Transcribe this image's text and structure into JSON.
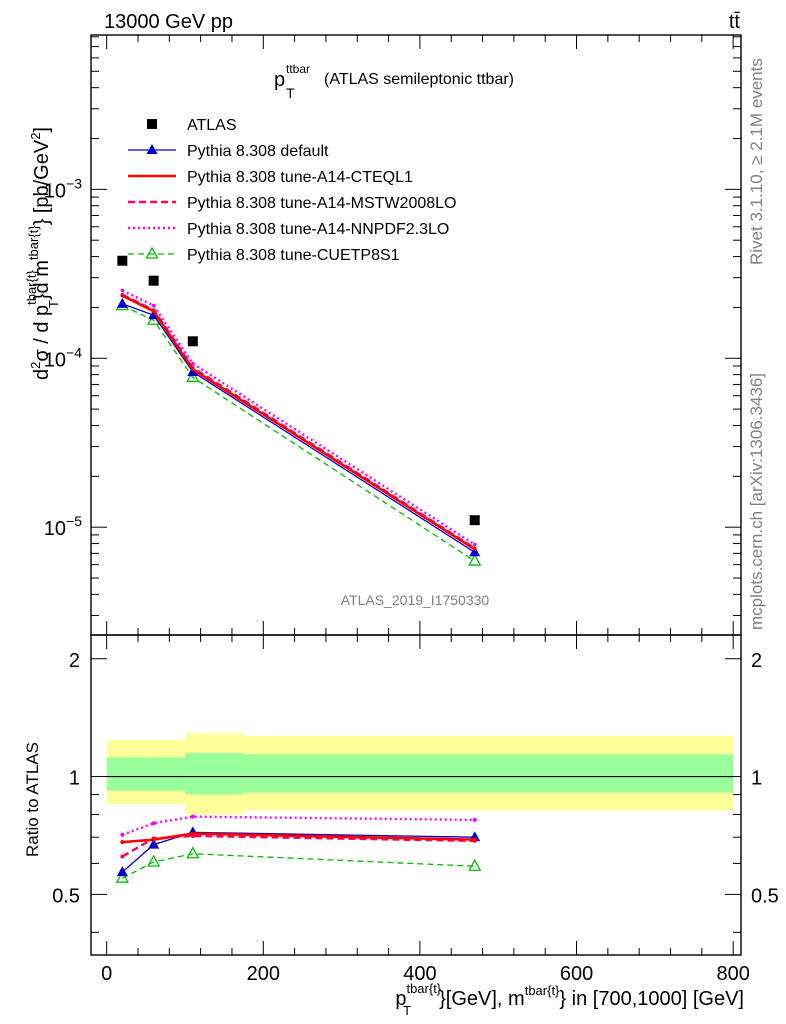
{
  "header": {
    "left": "13000 GeV pp",
    "right": "tt̄"
  },
  "side_labels": {
    "rivet": "Rivet 3.1.10, ≥ 2.1M events",
    "mcplots": "mcplots.cern.ch [arXiv:1306.3436]"
  },
  "watermark": "ATLAS_2019_I1750330",
  "colors": {
    "data": "#000000",
    "default": "#0000cc",
    "cteql1": "#ff0000",
    "mstw": "#ff0066",
    "nnpdf": "#ff00ff",
    "cuetp": "#00bb00",
    "band_outer": "#ffff99",
    "band_inner": "#99ff99"
  },
  "chart_data": {
    "type": "line",
    "title": "(ATLAS semileptonic ttbar)",
    "title_var": "p",
    "title_sub": "T",
    "title_sup": "ttbar",
    "ylabel": "d²σ / d p_T^{tbar{t}} d m^{tbar{t}} [pb/GeV²]",
    "xlabel": "p_T^{tbar{t}} [GeV], m^{tbar{t}} in [700,1000] [GeV]",
    "ratio_ylabel": "Ratio to ATLAS",
    "xlim": [
      -20,
      810
    ],
    "ylim": [
      2.3e-06,
      0.0082
    ],
    "yscale": "log",
    "ratio_ylim": [
      0.35,
      2.3
    ],
    "x_ticks": [
      "0",
      "200",
      "400",
      "600",
      "800"
    ],
    "ratio_ticks": [
      "0.5",
      "1",
      "2"
    ],
    "x": [
      20,
      60,
      110,
      470
    ],
    "data_points": [
      0.000378,
      0.000288,
      0.000126,
      1.1e-05
    ],
    "series": [
      {
        "name": "ATLAS",
        "key": "data"
      },
      {
        "name": "Pythia 8.308 default",
        "key": "default",
        "values": [
          0.00021,
          0.00018,
          8.3e-05,
          7.1e-06
        ],
        "ratio": [
          0.57,
          0.67,
          0.72,
          0.7
        ]
      },
      {
        "name": "Pythia 8.308 tune-A14-CTEQL1",
        "key": "cteql1",
        "values": [
          0.000235,
          0.00019,
          8.6e-05,
          7.4e-06
        ],
        "ratio": [
          0.68,
          0.69,
          0.715,
          0.69
        ]
      },
      {
        "name": "Pythia 8.308 tune-A14-MSTW2008LO",
        "key": "mstw",
        "values": [
          0.000238,
          0.000193,
          8.8e-05,
          7.5e-06
        ],
        "ratio": [
          0.625,
          0.695,
          0.705,
          0.685
        ]
      },
      {
        "name": "Pythia 8.308 tune-A14-NNPDF2.3LO",
        "key": "nnpdf",
        "values": [
          0.000252,
          0.000205,
          9.3e-05,
          7.9e-06
        ],
        "ratio": [
          0.71,
          0.76,
          0.79,
          0.775
        ]
      },
      {
        "name": "Pythia 8.308 tune-CUETP8S1",
        "key": "cuetp",
        "values": [
          0.000205,
          0.000168,
          7.7e-05,
          6.3e-06
        ],
        "ratio": [
          0.55,
          0.605,
          0.635,
          0.59
        ]
      }
    ],
    "band_bins": [
      {
        "x0": 0,
        "x1": 50,
        "outer": [
          0.85,
          1.24
        ],
        "inner": [
          0.92,
          1.12
        ]
      },
      {
        "x0": 50,
        "x1": 100,
        "outer": [
          0.85,
          1.24
        ],
        "inner": [
          0.92,
          1.12
        ]
      },
      {
        "x0": 100,
        "x1": 175,
        "outer": [
          0.8,
          1.29
        ],
        "inner": [
          0.9,
          1.15
        ]
      },
      {
        "x0": 175,
        "x1": 800,
        "outer": [
          0.82,
          1.27
        ],
        "inner": [
          0.91,
          1.14
        ]
      }
    ]
  }
}
